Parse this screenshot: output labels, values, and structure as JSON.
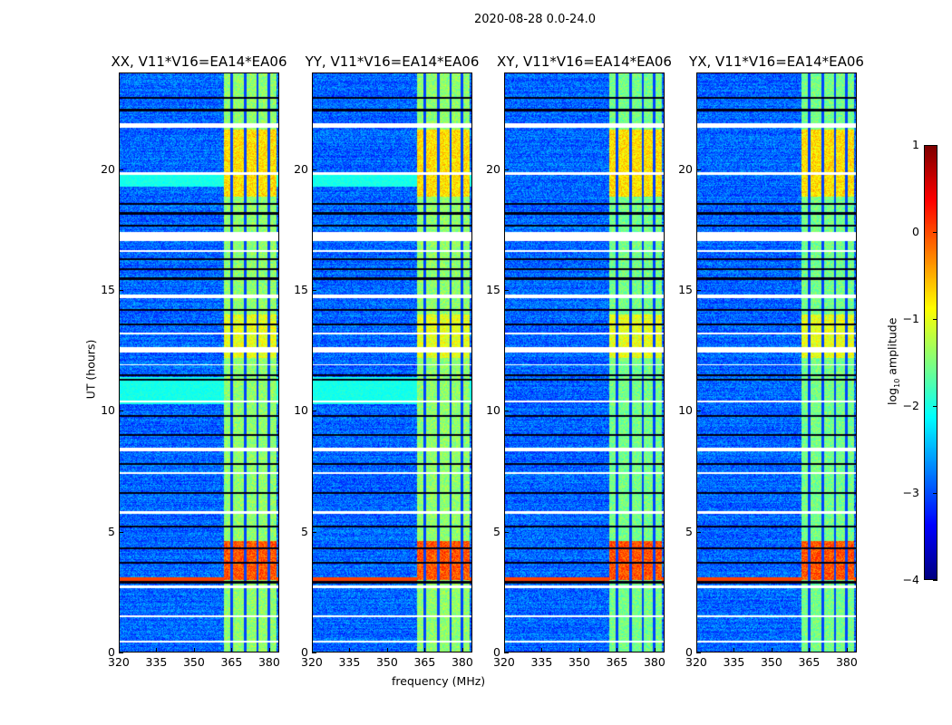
{
  "chart_data": {
    "type": "heatmap",
    "title": "2020-08-28 0.0-24.0",
    "xlabel": "frequency (MHz)",
    "ylabel": "UT (hours)",
    "xlim": [
      320,
      384
    ],
    "ylim": [
      0,
      24
    ],
    "xticks": [
      320,
      335,
      350,
      365,
      380
    ],
    "yticks": [
      0,
      5,
      10,
      15,
      20
    ],
    "colorbar": {
      "label": "log10 amplitude",
      "label_main": "log",
      "label_sub": "10",
      "label_rest": " amplitude",
      "range": [
        -4,
        1
      ],
      "ticks": [
        1,
        0,
        -1,
        -2,
        -3,
        -4
      ],
      "colormap": "jet"
    },
    "panels": [
      {
        "title": "XX, V11*V16=EA14*EA06",
        "broadband_cyan_hours": [
          [
            19.3,
            19.8
          ],
          [
            10.3,
            11.4
          ]
        ]
      },
      {
        "title": "YY, V11*V16=EA14*EA06",
        "broadband_cyan_hours": [
          [
            19.3,
            19.8
          ],
          [
            10.3,
            11.4
          ]
        ]
      },
      {
        "title": "XY, V11*V16=EA14*EA06",
        "broadband_cyan_hours": []
      },
      {
        "title": "YX, V11*V16=EA14*EA06",
        "broadband_cyan_hours": []
      }
    ],
    "background_log_amp": -3.1,
    "rfi_band_mhz": [
      362,
      383
    ],
    "rfi_subband_edges_mhz": [
      365,
      370.5,
      375.5,
      380
    ],
    "rfi_band_log_amp": -1.4,
    "strong_periods": [
      {
        "hours": [
          3.0,
          4.6
        ],
        "log_amp": 0.2
      },
      {
        "hours": [
          18.9,
          21.7
        ],
        "log_amp": -0.6
      },
      {
        "hours": [
          12.2,
          14.0
        ],
        "log_amp": -0.9
      }
    ],
    "strong_broadband_hours": [
      [
        2.95,
        3.1
      ]
    ],
    "flagged_hours": [
      [
        21.75,
        21.95
      ],
      [
        17.05,
        17.45
      ],
      [
        14.7,
        14.85
      ],
      [
        12.45,
        12.65
      ],
      [
        10.35,
        10.45
      ],
      [
        8.35,
        8.5
      ],
      [
        5.75,
        5.85
      ],
      [
        2.65,
        2.75
      ],
      [
        1.45,
        1.52
      ],
      [
        0.4,
        0.47
      ],
      [
        19.8,
        19.9
      ],
      [
        16.6,
        16.7
      ],
      [
        13.2,
        13.25
      ],
      [
        7.4,
        7.45
      ],
      [
        11.9,
        11.95
      ]
    ],
    "gap_hours": [
      23.0,
      22.5,
      18.6,
      18.2,
      17.7,
      16.3,
      15.9,
      15.5,
      14.2,
      13.6,
      11.5,
      11.3,
      9.8,
      9.0,
      7.8,
      6.6,
      5.2,
      4.3,
      3.7,
      2.9
    ]
  }
}
